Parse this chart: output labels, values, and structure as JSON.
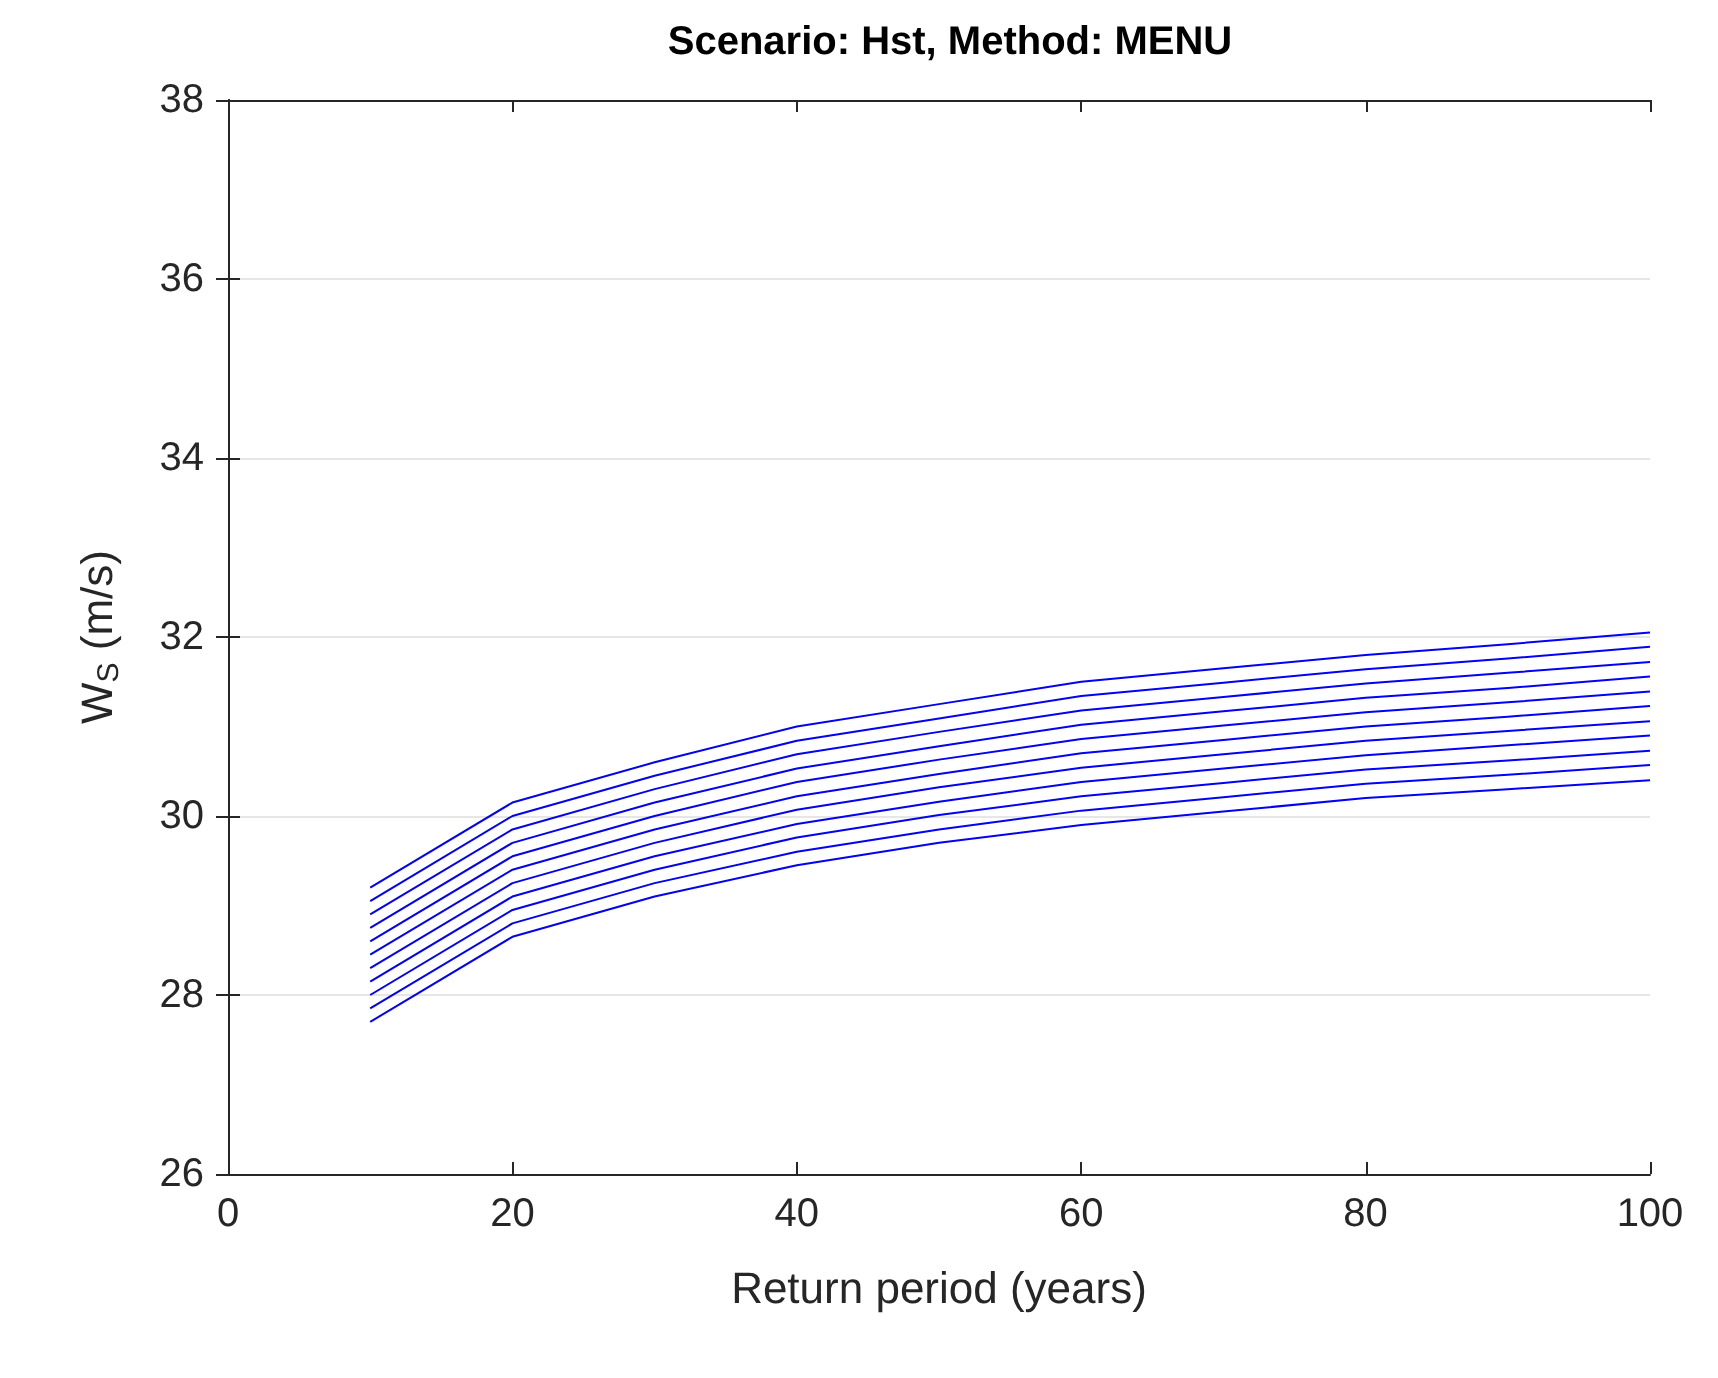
{
  "chart_data": {
    "type": "line",
    "title": "Scenario: Hst, Method: MENU",
    "xlabel": "Return period (years)",
    "ylabel": "W$_{S}$ (m/s)",
    "x": [
      10,
      20,
      30,
      40,
      50,
      60,
      70,
      80,
      90,
      100
    ],
    "series": [
      {
        "color": "#0000ff",
        "values": [
          27.7,
          28.65,
          29.1,
          29.45,
          29.7,
          29.9,
          30.05,
          30.2,
          30.3,
          30.4
        ]
      },
      {
        "color": "#0000ff",
        "values": [
          27.85,
          28.8,
          29.25,
          29.6,
          29.85,
          30.06,
          30.21,
          30.36,
          30.46,
          30.57
        ]
      },
      {
        "color": "#0000ff",
        "values": [
          28.0,
          28.95,
          29.4,
          29.76,
          30.01,
          30.22,
          30.37,
          30.52,
          30.62,
          30.73
        ]
      },
      {
        "color": "#0000ff",
        "values": [
          28.15,
          29.1,
          29.55,
          29.91,
          30.16,
          30.38,
          30.53,
          30.68,
          30.79,
          30.9
        ]
      },
      {
        "color": "#0000ff",
        "values": [
          28.3,
          29.25,
          29.7,
          30.07,
          30.32,
          30.54,
          30.69,
          30.84,
          30.95,
          31.06
        ]
      },
      {
        "color": "#0000ff",
        "values": [
          28.45,
          29.4,
          29.85,
          30.22,
          30.47,
          30.7,
          30.85,
          31.0,
          31.11,
          31.23
        ]
      },
      {
        "color": "#0000ff",
        "values": [
          28.6,
          29.55,
          30.0,
          30.38,
          30.63,
          30.86,
          31.01,
          31.16,
          31.27,
          31.39
        ]
      },
      {
        "color": "#0000ff",
        "values": [
          28.75,
          29.7,
          30.15,
          30.53,
          30.78,
          31.02,
          31.17,
          31.32,
          31.43,
          31.56
        ]
      },
      {
        "color": "#0000ff",
        "values": [
          28.9,
          29.85,
          30.3,
          30.69,
          30.94,
          31.18,
          31.33,
          31.48,
          31.6,
          31.72
        ]
      },
      {
        "color": "#0000ff",
        "values": [
          29.05,
          30.0,
          30.45,
          30.84,
          31.09,
          31.34,
          31.49,
          31.64,
          31.76,
          31.89
        ]
      },
      {
        "color": "#0000ff",
        "values": [
          29.2,
          30.15,
          30.6,
          31.0,
          31.25,
          31.5,
          31.65,
          31.8,
          31.92,
          32.05
        ]
      }
    ],
    "xlim": [
      0,
      100
    ],
    "xticks": [
      0,
      20,
      40,
      60,
      80,
      100
    ],
    "ylim": [
      26,
      38
    ],
    "yticks": [
      26,
      28,
      30,
      32,
      34,
      36,
      38
    ],
    "grid": "y",
    "marker": "none",
    "line_style": "solid"
  }
}
